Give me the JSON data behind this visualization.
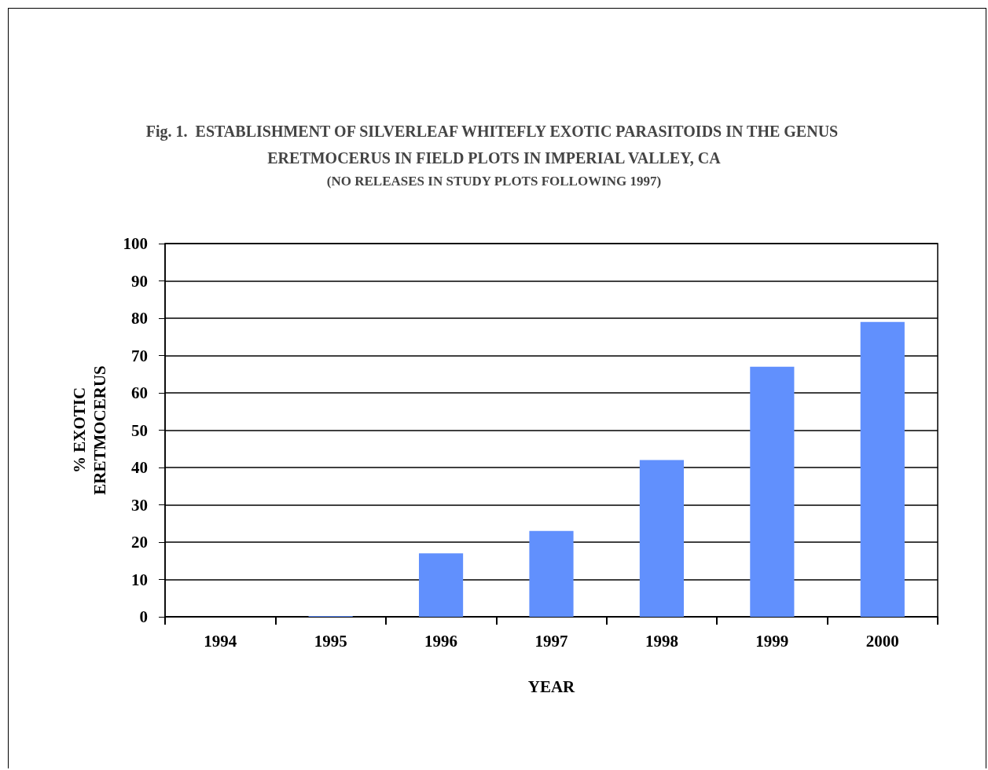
{
  "chart_data": {
    "type": "bar",
    "title": "Fig. 1.  ESTABLISHMENT OF SILVERLEAF WHITEFLY EXOTIC PARASITOIDS IN THE GENUS ERETMOCERUS IN FIELD PLOTS IN IMPERIAL VALLEY, CA",
    "subtitle": "(NO RELEASES IN STUDY PLOTS FOLLOWING 1997)",
    "xlabel": "YEAR",
    "ylabel": "% EXOTIC ERETMOCERUS",
    "categories": [
      "1994",
      "1995",
      "1996",
      "1997",
      "1998",
      "1999",
      "2000"
    ],
    "values": [
      0,
      0.2,
      17,
      23,
      42,
      67,
      79
    ],
    "color": "#6190fd",
    "ylim": [
      0,
      100
    ],
    "yticks": [
      0,
      10,
      20,
      30,
      40,
      50,
      60,
      70,
      80,
      90,
      100
    ],
    "grid": "y"
  }
}
